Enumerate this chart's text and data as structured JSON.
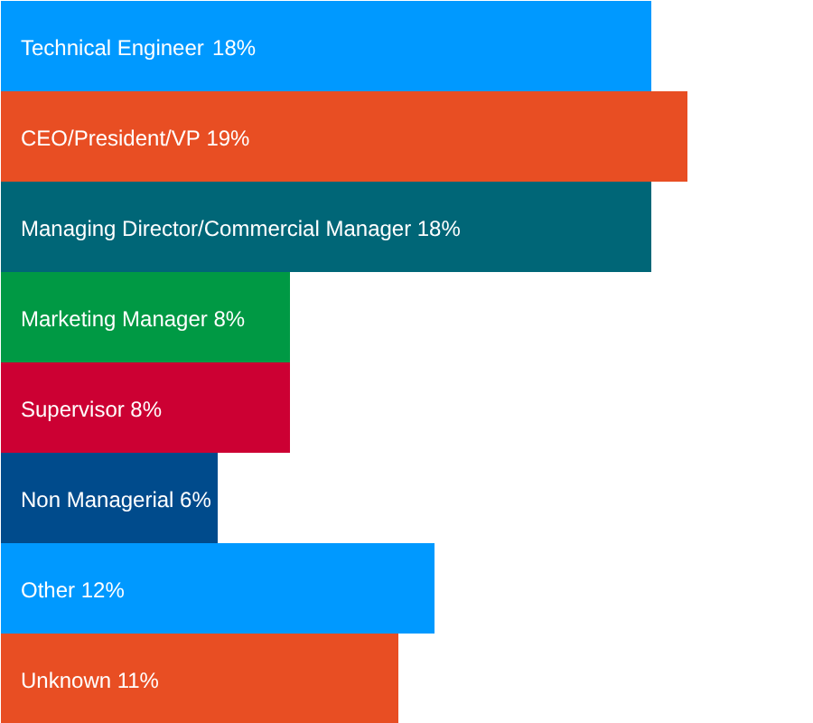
{
  "chart_data": {
    "type": "bar",
    "orientation": "horizontal",
    "tick_labels": false,
    "categories": [
      "Technical Engineer",
      "CEO/President/VP",
      "Managing Director/Commercial Manager",
      "Marketing Manager",
      "Supervisor",
      "Non Managerial",
      "Other",
      "Unknown"
    ],
    "values": [
      18,
      19,
      18,
      8,
      8,
      6,
      12,
      11
    ],
    "value_labels": [
      "18%",
      "19%",
      "18%",
      "8%",
      "8%",
      "6%",
      "12%",
      "11%"
    ],
    "colors": [
      "#0099ff",
      "#e84e23",
      "#006677",
      "#009944",
      "#cc0033",
      "#004b8c",
      "#0099ff",
      "#e84e23"
    ]
  }
}
